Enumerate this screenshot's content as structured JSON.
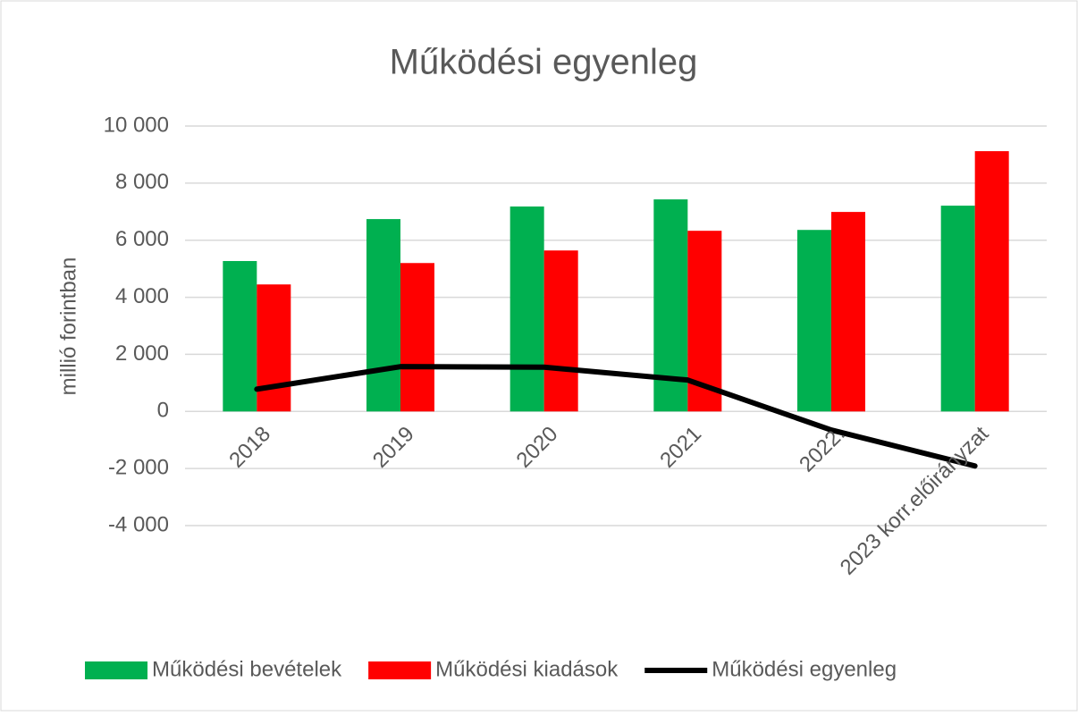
{
  "chart_data": {
    "type": "bar",
    "title": "Működési egyenleg",
    "y_label": "millió forintban",
    "categories": [
      "2018",
      "2019",
      "2020",
      "2021",
      "2022.",
      "2023 korr.előirányzat"
    ],
    "series": [
      {
        "name": "Működési bevételek",
        "color": "#00b050",
        "values": [
          5270,
          6740,
          7180,
          7430,
          6360,
          7210
        ]
      },
      {
        "name": "Működési kiadások",
        "color": "#ff0000",
        "values": [
          4450,
          5200,
          5640,
          6330,
          6990,
          9120
        ]
      },
      {
        "name": "Működési egyenleg",
        "color": "#000000",
        "type": "line",
        "values": [
          780,
          1570,
          1550,
          1100,
          -650,
          -1910
        ]
      }
    ],
    "ylim": [
      -4000,
      10000
    ],
    "yticks": [
      {
        "value": -4000,
        "label": "-4 000"
      },
      {
        "value": -2000,
        "label": "-2 000"
      },
      0,
      {
        "value": 2000,
        "label": "2 000"
      },
      {
        "value": 4000,
        "label": "4 000"
      },
      {
        "value": 6000,
        "label": "6 000"
      },
      {
        "value": 8000,
        "label": "8 000"
      },
      {
        "value": 10000,
        "label": "10 000"
      }
    ],
    "grid": true,
    "legend": "bottom"
  }
}
